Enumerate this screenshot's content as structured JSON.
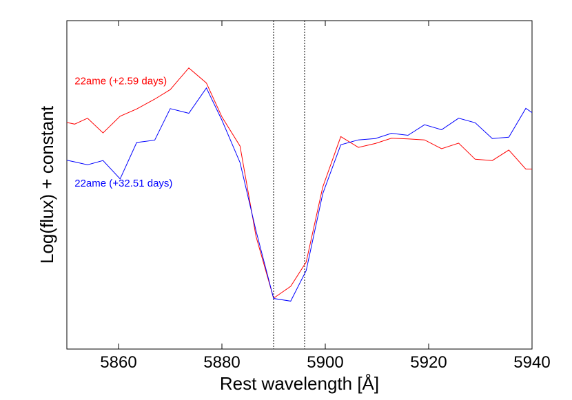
{
  "chart_data": {
    "type": "line",
    "title": "",
    "xlabel": "Rest wavelength [Å]",
    "ylabel": "Log(flux) + constant",
    "xlim": [
      5850,
      5940
    ],
    "ylim": [
      0,
      1
    ],
    "x_ticks": [
      5860,
      5880,
      5900,
      5920,
      5940
    ],
    "x_tick_labels": [
      "5860",
      "5880",
      "5900",
      "5920",
      "5940"
    ],
    "y_ticks_shown": false,
    "grid": false,
    "vlines": [
      5890,
      5896
    ],
    "vline_style": "dotted",
    "series": [
      {
        "name": "22ame (+2.59 days)",
        "color": "#ff0000",
        "x": [
          5850,
          5851.5,
          5854,
          5857,
          5860.3,
          5863.5,
          5867,
          5870,
          5873.6,
          5877,
          5880,
          5883.5,
          5886.6,
          5890,
          5893.3,
          5896.3,
          5899.5,
          5903,
          5906.4,
          5909.7,
          5912.8,
          5916,
          5919.2,
          5922.5,
          5925.8,
          5929,
          5932.3,
          5935.5,
          5938.8,
          5940
        ],
        "y": [
          0.69,
          0.685,
          0.703,
          0.658,
          0.709,
          0.731,
          0.761,
          0.79,
          0.856,
          0.81,
          0.707,
          0.618,
          0.343,
          0.155,
          0.191,
          0.265,
          0.493,
          0.647,
          0.614,
          0.626,
          0.642,
          0.64,
          0.637,
          0.61,
          0.627,
          0.578,
          0.574,
          0.606,
          0.548,
          0.548
        ]
      },
      {
        "name": "22ame (+32.51 days)",
        "color": "#0000ff",
        "x": [
          5850,
          5851.5,
          5854,
          5857,
          5860.3,
          5863.5,
          5867,
          5870,
          5873.6,
          5877,
          5880,
          5883.5,
          5886.6,
          5890,
          5893.3,
          5896.3,
          5899.5,
          5903,
          5906.4,
          5909.7,
          5912.8,
          5916,
          5919.2,
          5922.5,
          5925.8,
          5929,
          5932.3,
          5935.5,
          5938.8,
          5940
        ],
        "y": [
          0.575,
          0.57,
          0.561,
          0.574,
          0.518,
          0.629,
          0.636,
          0.732,
          0.718,
          0.795,
          0.697,
          0.568,
          0.36,
          0.154,
          0.146,
          0.239,
          0.473,
          0.622,
          0.637,
          0.641,
          0.657,
          0.651,
          0.683,
          0.668,
          0.703,
          0.689,
          0.641,
          0.645,
          0.733,
          0.72
        ]
      }
    ],
    "annotations": [
      {
        "text": "22ame (+2.59 days)",
        "color": "#ff0000",
        "x": 5851.5,
        "y": 0.806
      },
      {
        "text": "22ame (+32.51 days)",
        "color": "#0000ff",
        "x": 5851.5,
        "y": 0.495
      }
    ]
  }
}
